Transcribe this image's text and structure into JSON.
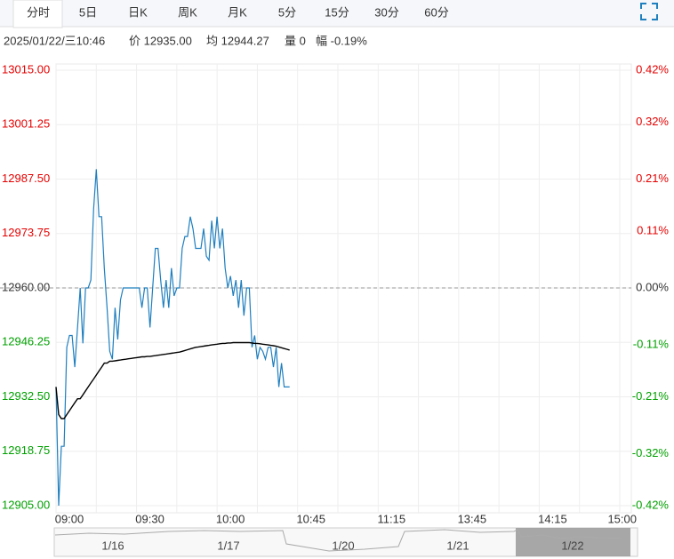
{
  "tabs": [
    "分时",
    "5日",
    "日K",
    "周K",
    "月K",
    "5分",
    "15分",
    "30分",
    "60分"
  ],
  "info": [
    "2025/01/22/三10:46",
    "价 12935.00",
    "均 12944.27",
    "量 0",
    "幅 -0.19%"
  ],
  "chart_data": {
    "type": "line",
    "x": [
      0,
      1,
      2,
      3,
      4,
      5,
      6,
      7,
      8,
      9,
      10,
      11,
      12,
      13,
      14,
      15,
      16,
      17,
      18,
      19,
      20,
      21,
      22,
      23,
      24,
      25,
      26,
      27,
      28,
      29,
      30,
      31,
      32,
      33,
      34,
      35,
      36,
      37,
      38,
      39,
      40,
      41,
      42,
      43,
      44,
      45,
      46,
      47,
      48,
      49,
      50,
      51,
      52,
      53,
      54,
      55,
      56,
      57,
      58,
      59,
      60,
      61,
      62,
      63,
      64,
      65,
      66,
      67,
      68,
      69,
      70,
      71,
      72,
      73,
      74,
      75,
      76,
      77,
      78,
      79,
      80,
      81,
      82,
      83,
      84,
      85,
      86,
      87
    ],
    "series": [
      {
        "name": "价",
        "color": "#1f7fbf",
        "values": [
          12935,
          12905,
          12920,
          12920,
          12945,
          12948,
          12948,
          12940,
          12950,
          12960,
          12946,
          12960,
          12960,
          12962,
          12980,
          12990,
          12978,
          12978,
          12965,
          12955,
          12944,
          12942,
          12955,
          12947,
          12957,
          12960,
          12960,
          12960,
          12960,
          12960,
          12960,
          12960,
          12955,
          12960,
          12960,
          12950,
          12960,
          12970,
          12970,
          12962,
          12955,
          12962,
          12955,
          12965,
          12958,
          12960,
          12960,
          12970,
          12973,
          12973,
          12978,
          12975,
          12970,
          12970,
          12970,
          12975,
          12968,
          12967,
          12977,
          12970,
          12978,
          12970,
          12975,
          12965,
          12960,
          12963,
          12958,
          12962,
          12955,
          12962,
          12953,
          12960,
          12960,
          12945,
          12948,
          12942,
          12945,
          12944,
          12942,
          12945,
          12945,
          12940,
          12945,
          12935,
          12941,
          12935,
          12935,
          12935
        ]
      },
      {
        "name": "均",
        "color": "#000000",
        "values": [
          12935,
          12928,
          12927,
          12927,
          12928,
          12929,
          12930,
          12931,
          12932,
          12932,
          12933,
          12934,
          12935,
          12936,
          12937,
          12938,
          12939,
          12940,
          12941,
          12941,
          12941.5,
          12941.5,
          12941.6,
          12941.7,
          12941.8,
          12941.9,
          12942,
          12942.1,
          12942.2,
          12942.3,
          12942.4,
          12942.5,
          12942.6,
          12942.6,
          12942.7,
          12942.7,
          12942.8,
          12942.9,
          12943,
          12943.1,
          12943.2,
          12943.3,
          12943.4,
          12943.5,
          12943.6,
          12943.7,
          12943.8,
          12944,
          12944.2,
          12944.4,
          12944.6,
          12944.8,
          12945,
          12945.1,
          12945.2,
          12945.3,
          12945.4,
          12945.5,
          12945.6,
          12945.7,
          12945.8,
          12945.9,
          12946,
          12946,
          12946.1,
          12946.1,
          12946.2,
          12946.2,
          12946.2,
          12946.2,
          12946.2,
          12946.2,
          12946.2,
          12946.1,
          12946,
          12946,
          12945.9,
          12945.8,
          12945.7,
          12945.6,
          12945.5,
          12945.4,
          12945.3,
          12945.1,
          12944.9,
          12944.7,
          12944.5,
          12944.3
        ]
      }
    ],
    "xlim": [
      0,
      210
    ],
    "xticks": [
      {
        "value": 0,
        "label": "09:00"
      },
      {
        "value": 30,
        "label": "09:30"
      },
      {
        "value": 60,
        "label": "10:00"
      },
      {
        "value": 90,
        "label": "10:45"
      },
      {
        "value": 120,
        "label": "11:15"
      },
      {
        "value": 150,
        "label": "13:45"
      },
      {
        "value": 180,
        "label": "14:15"
      },
      {
        "value": 210,
        "label": "15:00"
      }
    ],
    "ylim": [
      12905,
      13015
    ],
    "yticks": [
      {
        "value": 13015,
        "label": "13015.00"
      },
      {
        "value": 13001.25,
        "label": "13001.25"
      },
      {
        "value": 12987.5,
        "label": "12987.50"
      },
      {
        "value": 12973.75,
        "label": "12973.75"
      },
      {
        "value": 12960,
        "label": "12960.00"
      },
      {
        "value": 12946.25,
        "label": "12946.25"
      },
      {
        "value": 12932.5,
        "label": "12932.50"
      },
      {
        "value": 12918.75,
        "label": "12918.75"
      },
      {
        "value": 12905,
        "label": "12905.00"
      }
    ],
    "y2lim": [
      -0.42,
      0.42
    ],
    "y2ticks": [
      {
        "value": 0.42,
        "label": "0.42%"
      },
      {
        "value": 0.32,
        "label": "0.32%"
      },
      {
        "value": 0.21,
        "label": "0.21%"
      },
      {
        "value": 0.11,
        "label": "0.11%"
      },
      {
        "value": 0,
        "label": "0.00%"
      },
      {
        "value": -0.11,
        "label": "-0.11%"
      },
      {
        "value": -0.21,
        "label": "-0.21%"
      },
      {
        "value": -0.32,
        "label": "-0.32%"
      },
      {
        "value": -0.42,
        "label": "-0.42%"
      }
    ],
    "reference_line": 12960,
    "up_color": "#e60000",
    "down_color": "#00a000",
    "grid": true
  },
  "navigator": [
    "1/16",
    "1/17",
    "1/20",
    "1/21",
    "1/22"
  ]
}
